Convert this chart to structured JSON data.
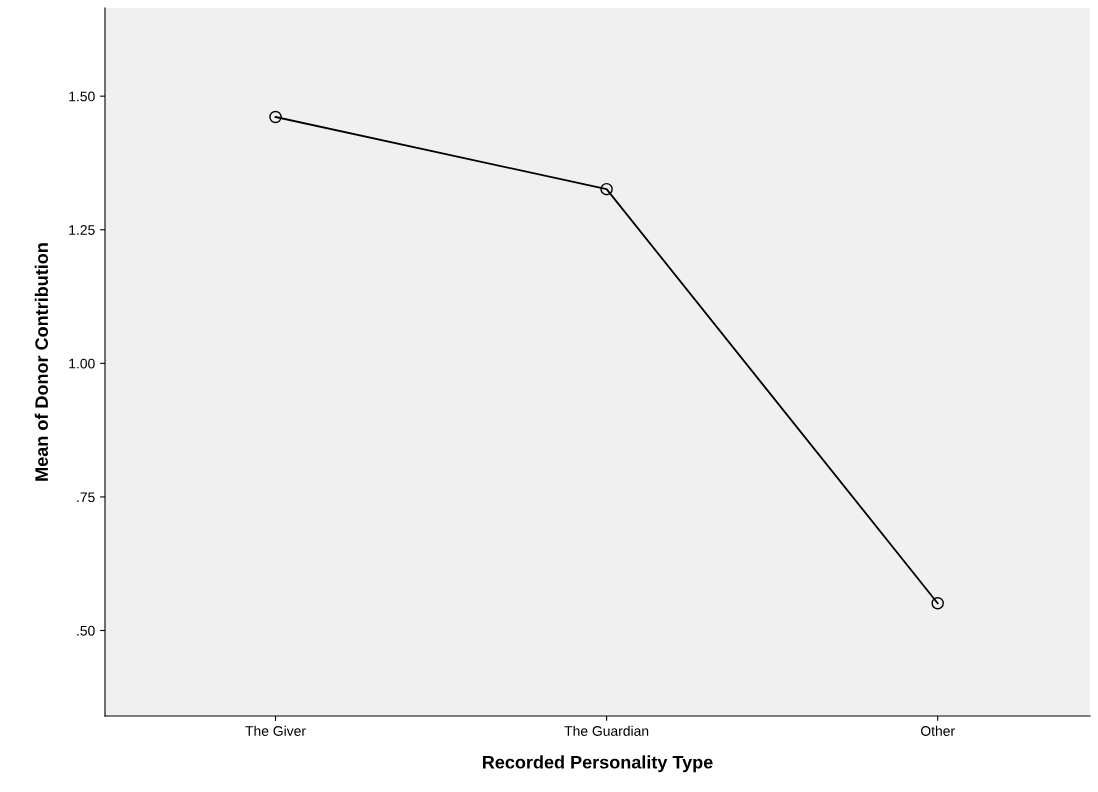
{
  "chart_data": {
    "type": "line",
    "xlabel": "Recorded Personality Type",
    "ylabel": "Mean of Donor Contribution",
    "categories": [
      "The Giver",
      "The Guardian",
      "Other"
    ],
    "series": [
      {
        "color": "#000000",
        "values": [
          1.461,
          1.326,
          0.551
        ]
      }
    ],
    "ylim": [
      0.34,
      1.665
    ],
    "yticks": [
      {
        "value": 0.5,
        "label": ".50"
      },
      {
        "value": 0.75,
        "label": ".75"
      },
      {
        "value": 1.0,
        "label": "1.00"
      },
      {
        "value": 1.25,
        "label": "1.25"
      },
      {
        "value": 1.5,
        "label": "1.50"
      }
    ],
    "marker": "circle",
    "line_style": "solid",
    "grid": false,
    "legend": false
  }
}
